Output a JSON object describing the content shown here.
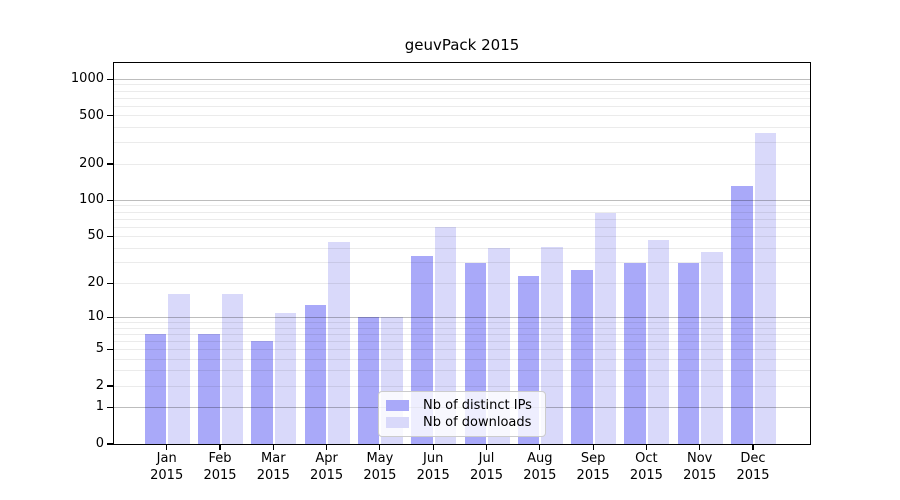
{
  "chart_data": {
    "type": "bar",
    "title": "geuvPack 2015",
    "categories": [
      "Jan",
      "Feb",
      "Mar",
      "Apr",
      "May",
      "Jun",
      "Jul",
      "Aug",
      "Sep",
      "Oct",
      "Nov",
      "Dec"
    ],
    "x_year_label": "2015",
    "series": [
      {
        "name": "Nb of distinct IPs",
        "color": "#a9a9f9",
        "values": [
          7,
          7,
          6,
          13,
          10,
          34,
          30,
          23,
          26,
          30,
          30,
          132
        ]
      },
      {
        "name": "Nb of downloads",
        "color": "#d9d9fa",
        "values": [
          16,
          16,
          11,
          45,
          10,
          60,
          40,
          41,
          78,
          47,
          37,
          360
        ]
      }
    ],
    "yscale": "log1p",
    "y_ticks": [
      0,
      1,
      2,
      5,
      10,
      20,
      50,
      100,
      200,
      500,
      1000
    ],
    "ylim": [
      0,
      1400
    ],
    "xlabel": "",
    "ylabel": "",
    "grid": "horizontal",
    "legend_position": "lower center",
    "colors": {
      "major_grid": "#bdbdbd",
      "minor_grid": "#ebebeb",
      "axis": "#000000",
      "background": "#ffffff"
    }
  }
}
